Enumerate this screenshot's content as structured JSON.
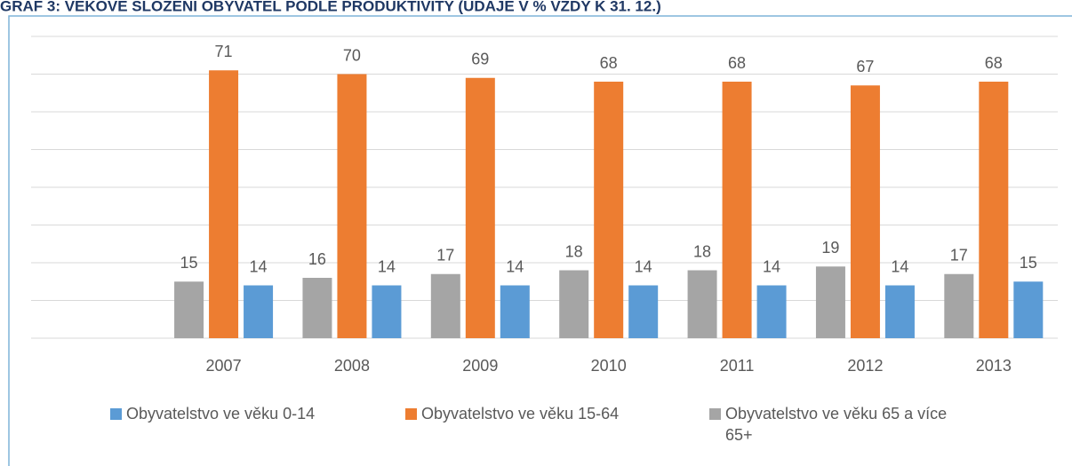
{
  "chart_data": {
    "type": "bar",
    "title": "GRAF 3: VĚKOVÉ SLOŽENÍ OBYVATEL PODLE PRODUKTIVITY (ÚDAJE V % VŽDY K 31. 12.)",
    "categories": [
      null,
      "2007",
      "2008",
      "2009",
      "2010",
      "2011",
      "2012",
      "2013"
    ],
    "series": [
      {
        "name": "Obyvatelstvo ve věku 0-14",
        "color": "#5b9bd5",
        "values": [
          null,
          14,
          14,
          14,
          14,
          14,
          14,
          15
        ]
      },
      {
        "name": "Obyvatelstvo ve věku 15-64",
        "color": "#ed7d31",
        "values": [
          null,
          71,
          70,
          69,
          68,
          68,
          67,
          68
        ]
      },
      {
        "name": "Obyvatelstvo ve věku 65 a více 65+",
        "color": "#a5a5a5",
        "values": [
          null,
          15,
          16,
          17,
          18,
          18,
          19,
          17
        ]
      }
    ],
    "ylim": [
      0,
      80
    ],
    "yticks": [
      0,
      10,
      20,
      30,
      40,
      50,
      60,
      70,
      80
    ],
    "grid": true
  }
}
